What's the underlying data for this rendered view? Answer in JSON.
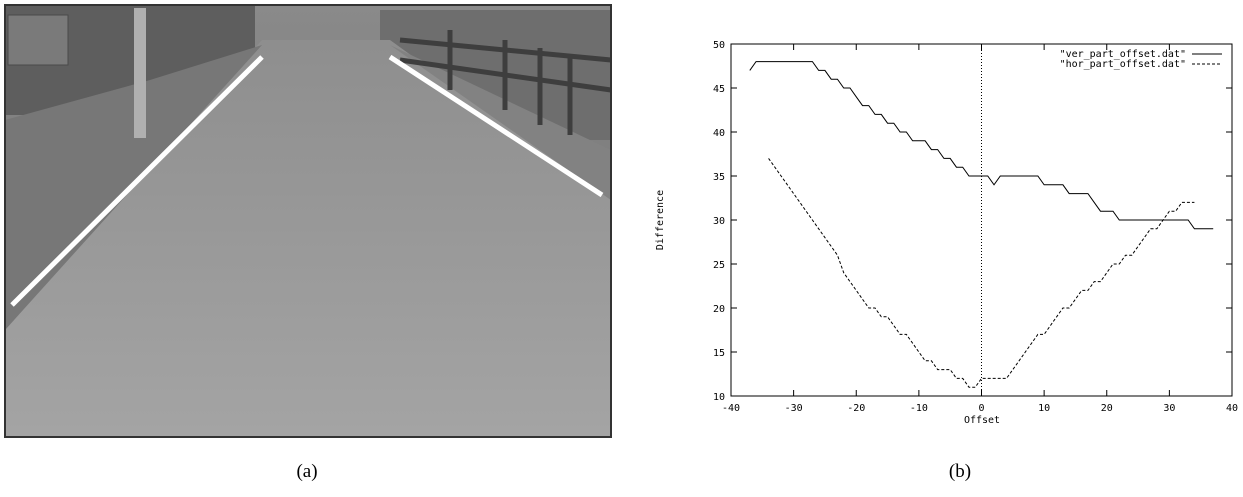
{
  "chart_data": {
    "type": "line",
    "xlabel": "Offset",
    "ylabel": "Difference",
    "xlim": [
      -40,
      40
    ],
    "xticks": [
      -40,
      -30,
      -20,
      -10,
      0,
      10,
      20,
      30,
      40
    ],
    "ylim": [
      10,
      50
    ],
    "yticks": [
      10,
      15,
      20,
      25,
      30,
      35,
      40,
      45,
      50
    ],
    "reference_line_x": 0,
    "legend": "top-right",
    "series": [
      {
        "name": "\"ver_part_offset.dat\"",
        "color": "#000000",
        "dash": "solid",
        "x": [
          -37,
          -36,
          -35,
          -34,
          -33,
          -32,
          -31,
          -30,
          -29,
          -28,
          -27,
          -26,
          -25,
          -24,
          -23,
          -22,
          -21,
          -20,
          -19,
          -18,
          -17,
          -16,
          -15,
          -14,
          -13,
          -12,
          -11,
          -10,
          -9,
          -8,
          -7,
          -6,
          -5,
          -4,
          -3,
          -2,
          -1,
          0,
          1,
          2,
          3,
          4,
          5,
          6,
          7,
          8,
          9,
          10,
          11,
          12,
          13,
          14,
          15,
          16,
          17,
          18,
          19,
          20,
          21,
          22,
          23,
          24,
          25,
          26,
          27,
          28,
          29,
          30,
          31,
          32,
          33,
          34,
          35,
          36,
          37
        ],
        "values": [
          47,
          48,
          48,
          48,
          48,
          48,
          48,
          48,
          48,
          48,
          48,
          47,
          47,
          46,
          46,
          45,
          45,
          44,
          43,
          43,
          42,
          42,
          41,
          41,
          40,
          40,
          39,
          39,
          39,
          38,
          38,
          37,
          37,
          36,
          36,
          35,
          35,
          35,
          35,
          34,
          35,
          35,
          35,
          35,
          35,
          35,
          35,
          34,
          34,
          34,
          34,
          33,
          33,
          33,
          33,
          32,
          31,
          31,
          31,
          30,
          30,
          30,
          30,
          30,
          30,
          30,
          30,
          30,
          30,
          30,
          30,
          29,
          29,
          29,
          29
        ]
      },
      {
        "name": "\"hor_part_offset.dat\"",
        "color": "#000000",
        "dash": "dashed",
        "x": [
          -34,
          -33,
          -32,
          -31,
          -30,
          -29,
          -28,
          -27,
          -26,
          -25,
          -24,
          -23,
          -22,
          -21,
          -20,
          -19,
          -18,
          -17,
          -16,
          -15,
          -14,
          -13,
          -12,
          -11,
          -10,
          -9,
          -8,
          -7,
          -6,
          -5,
          -4,
          -3,
          -2,
          -1,
          0,
          1,
          2,
          3,
          4,
          5,
          6,
          7,
          8,
          9,
          10,
          11,
          12,
          13,
          14,
          15,
          16,
          17,
          18,
          19,
          20,
          21,
          22,
          23,
          24,
          25,
          26,
          27,
          28,
          29,
          30,
          31,
          32,
          33,
          34
        ],
        "values": [
          37,
          36,
          35,
          34,
          33,
          32,
          31,
          30,
          29,
          28,
          27,
          26,
          24,
          23,
          22,
          21,
          20,
          20,
          19,
          19,
          18,
          17,
          17,
          16,
          15,
          14,
          14,
          13,
          13,
          13,
          12,
          12,
          11,
          11,
          12,
          12,
          12,
          12,
          12,
          13,
          14,
          15,
          16,
          17,
          17,
          18,
          19,
          20,
          20,
          21,
          22,
          22,
          23,
          23,
          24,
          25,
          25,
          26,
          26,
          27,
          28,
          29,
          29,
          30,
          31,
          31,
          32,
          32,
          32
        ]
      }
    ]
  },
  "captions": [
    "(a)",
    "(b)"
  ]
}
